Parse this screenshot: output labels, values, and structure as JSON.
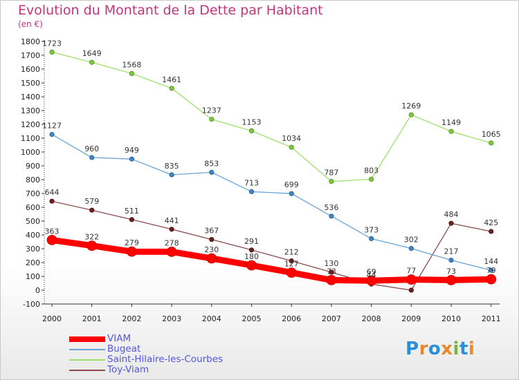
{
  "title": "Evolution du Montant de la Dette par Habitant",
  "unit": "(en €)",
  "logo": {
    "letters": [
      "P",
      "r",
      "o",
      "x",
      "i",
      "t",
      "i"
    ],
    "colors": [
      "#2a8fd6",
      "#e8882a",
      "#2a8fd6",
      "#e8882a",
      "#74b83a",
      "#2a8fd6",
      "#e8882a"
    ]
  },
  "chart_data": {
    "type": "line",
    "title": "Evolution du Montant de la Dette par Habitant",
    "ylabel": "(en €)",
    "xlabel": "",
    "ylim": [
      -100,
      1800
    ],
    "yticks": [
      -100,
      0,
      100,
      200,
      300,
      400,
      500,
      600,
      700,
      800,
      900,
      1000,
      1100,
      1200,
      1300,
      1400,
      1500,
      1600,
      1700,
      1800
    ],
    "categories": [
      "2000",
      "2001",
      "2002",
      "2003",
      "2004",
      "2005",
      "2006",
      "2007",
      "2008",
      "2009",
      "2010",
      "2011"
    ],
    "grid": false,
    "legend_position": "bottom-left",
    "series": [
      {
        "name": "VIAM",
        "color": "#ff0000",
        "values": [
          363,
          322,
          279,
          278,
          230,
          180,
          127,
          73,
          69,
          77,
          73,
          79
        ],
        "labels": [
          "363",
          "322",
          "279",
          "278",
          "230",
          "180",
          "127",
          "73",
          "69",
          "77",
          "73",
          "79"
        ]
      },
      {
        "name": "Bugeat",
        "color": "#6aa3d5",
        "values": [
          1127,
          960,
          949,
          835,
          853,
          713,
          699,
          536,
          373,
          302,
          217,
          144
        ],
        "labels": [
          "1127",
          "960",
          "949",
          "835",
          "853",
          "713",
          "699",
          "536",
          "373",
          "302",
          "217",
          "144"
        ]
      },
      {
        "name": "Saint-Hilaire-les-Courbes",
        "color": "#9ee06a",
        "values": [
          1723,
          1649,
          1568,
          1461,
          1237,
          1153,
          1034,
          787,
          803,
          1269,
          1149,
          1065
        ],
        "labels": [
          "1723",
          "1649",
          "1568",
          "1461",
          "1237",
          "1153",
          "1034",
          "787",
          "803",
          "1269",
          "1149",
          "1065"
        ]
      },
      {
        "name": "Toy-Viam",
        "color": "#8a4a4a",
        "values": [
          644,
          579,
          511,
          441,
          367,
          291,
          212,
          130,
          44,
          0,
          484,
          425
        ],
        "labels": [
          "644",
          "579",
          "511",
          "441",
          "367",
          "291",
          "212",
          "130",
          "44",
          "",
          "484",
          "425"
        ]
      }
    ]
  }
}
